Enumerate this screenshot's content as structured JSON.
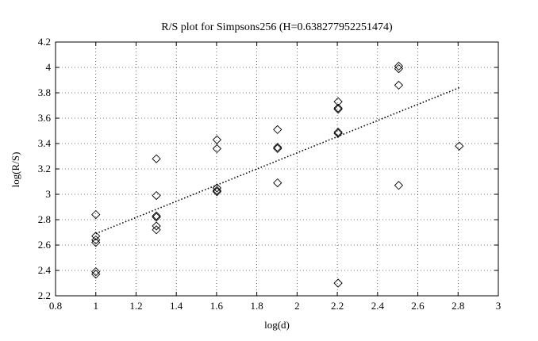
{
  "chart_data": {
    "type": "scatter",
    "title": "R/S plot for Simpsons256 (H=0.638277952251474)",
    "xlabel": "log(d)",
    "ylabel": "log(R/S)",
    "xlim": [
      0.8,
      3
    ],
    "ylim": [
      2.2,
      4.2
    ],
    "xticks": [
      "0.8",
      "1",
      "1.2",
      "1.4",
      "1.6",
      "1.8",
      "2",
      "2.2",
      "2.4",
      "2.6",
      "2.8",
      "3"
    ],
    "yticks": [
      "2.2",
      "2.4",
      "2.6",
      "2.8",
      "3",
      "3.2",
      "3.4",
      "3.6",
      "3.8",
      "4",
      "4.2"
    ],
    "grid": true,
    "marker": "diamond",
    "colors": {
      "marker": "#000000",
      "fit_line": "#000000",
      "grid": "#000000"
    },
    "points": [
      {
        "x": 1.0,
        "y": 2.84
      },
      {
        "x": 1.0,
        "y": 2.67
      },
      {
        "x": 1.0,
        "y": 2.64
      },
      {
        "x": 1.0,
        "y": 2.62
      },
      {
        "x": 1.0,
        "y": 2.39
      },
      {
        "x": 1.0,
        "y": 2.37
      },
      {
        "x": 1.301,
        "y": 3.28
      },
      {
        "x": 1.301,
        "y": 2.99
      },
      {
        "x": 1.301,
        "y": 2.83
      },
      {
        "x": 1.301,
        "y": 2.82
      },
      {
        "x": 1.301,
        "y": 2.75
      },
      {
        "x": 1.301,
        "y": 2.72
      },
      {
        "x": 1.602,
        "y": 3.43
      },
      {
        "x": 1.602,
        "y": 3.36
      },
      {
        "x": 1.602,
        "y": 3.05
      },
      {
        "x": 1.602,
        "y": 3.03
      },
      {
        "x": 1.602,
        "y": 3.02
      },
      {
        "x": 1.903,
        "y": 3.51
      },
      {
        "x": 1.903,
        "y": 3.37
      },
      {
        "x": 1.903,
        "y": 3.36
      },
      {
        "x": 1.903,
        "y": 3.09
      },
      {
        "x": 2.204,
        "y": 3.73
      },
      {
        "x": 2.204,
        "y": 3.68
      },
      {
        "x": 2.204,
        "y": 3.67
      },
      {
        "x": 2.204,
        "y": 3.49
      },
      {
        "x": 2.204,
        "y": 3.48
      },
      {
        "x": 2.204,
        "y": 2.3
      },
      {
        "x": 2.505,
        "y": 4.01
      },
      {
        "x": 2.505,
        "y": 3.99
      },
      {
        "x": 2.505,
        "y": 3.86
      },
      {
        "x": 2.505,
        "y": 3.07
      },
      {
        "x": 2.806,
        "y": 3.38
      }
    ],
    "fit_line": {
      "style": "dotted",
      "points": [
        [
          1.0,
          2.69
        ],
        [
          2.806,
          3.84
        ]
      ]
    }
  }
}
